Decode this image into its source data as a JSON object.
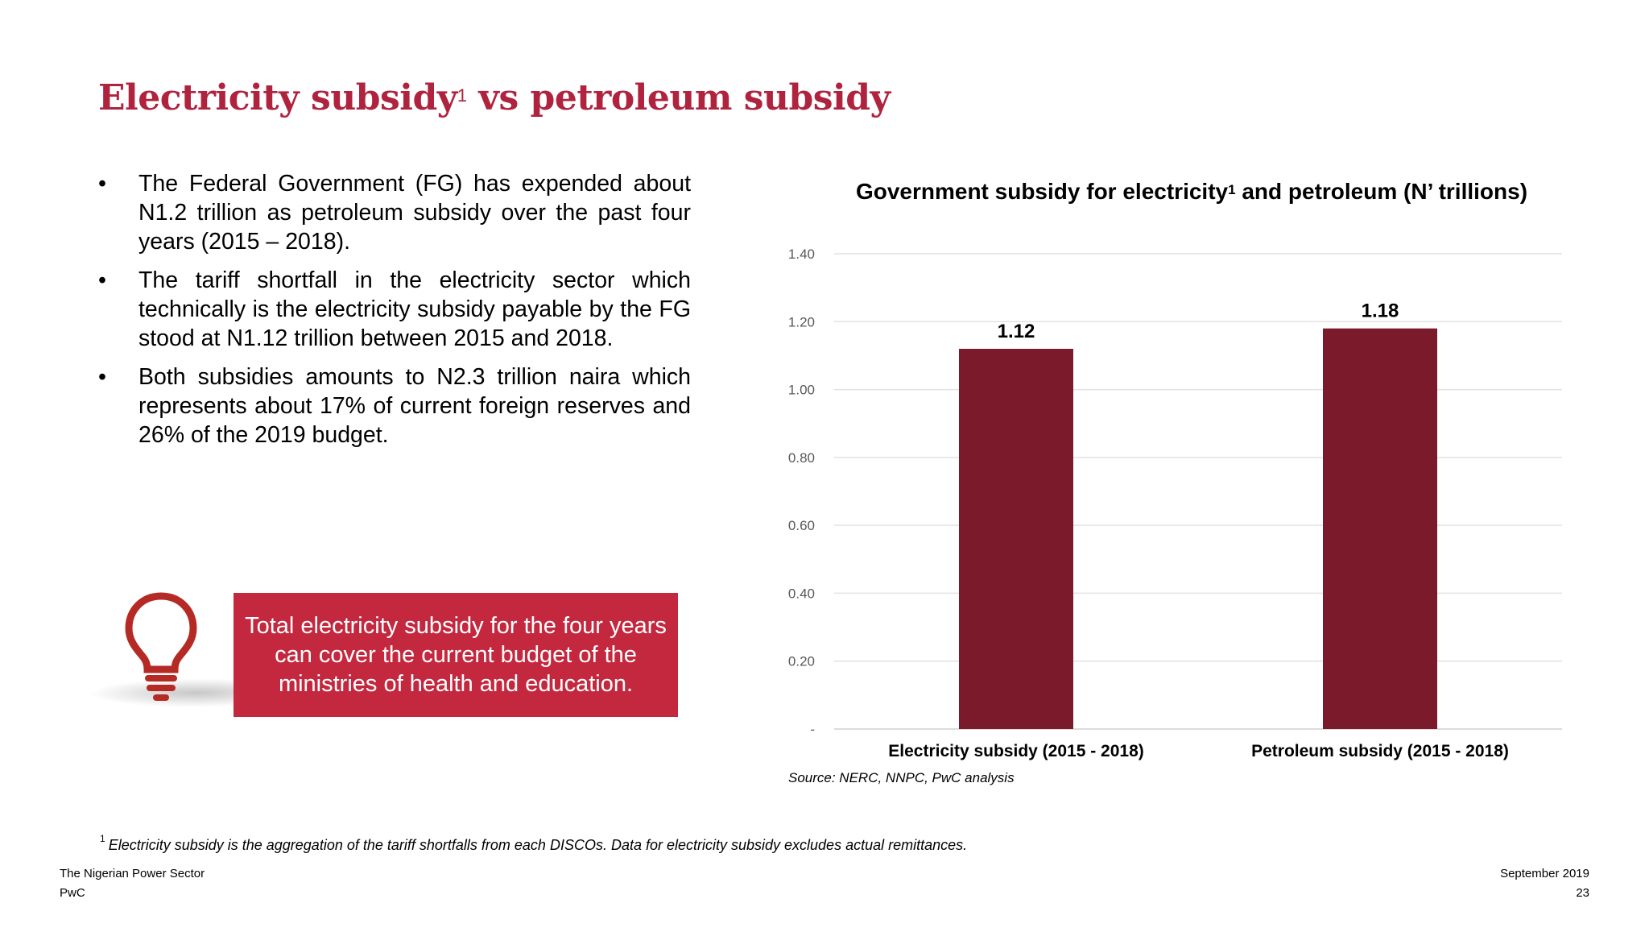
{
  "slide": {
    "title": "Electricity subsidy",
    "title_sup": "1",
    "title_rest": " vs petroleum subsidy"
  },
  "bullets": [
    "The Federal Government (FG) has expended about N1.2 trillion as petroleum subsidy over the past four years (2015 – 2018).",
    "The tariff shortfall in the electricity sector which technically is the electricity subsidy payable by the FG stood at N1.12 trillion between 2015 and 2018.",
    "Both subsidies amounts to N2.3 trillion naira which represents about 17% of current foreign reserves and 26% of the 2019 budget."
  ],
  "bullet_symbol": "•",
  "callout": {
    "text": "Total electricity subsidy for the four years can cover the current budget of the ministries of health and education.",
    "icon": "lightbulb-icon"
  },
  "chart_title": {
    "part1": "Government subsidy for electricity",
    "sup": "1",
    "part2": " and petroleum (N’ trillions)"
  },
  "chart_data": {
    "type": "bar",
    "title": "Government subsidy for electricity1 and petroleum (N’ trillions)",
    "categories": [
      "Electricity subsidy (2015 - 2018)",
      "Petroleum subsidy (2015 - 2018)"
    ],
    "values": [
      1.12,
      1.18
    ],
    "data_labels": [
      "1.12",
      "1.18"
    ],
    "yticks": [
      "-",
      "0.20",
      "0.40",
      "0.60",
      "0.80",
      "1.00",
      "1.20",
      "1.40"
    ],
    "ylim": [
      0,
      1.4
    ],
    "grid": true,
    "bar_color": "#7b1a2a",
    "xlabel": "",
    "ylabel": ""
  },
  "source": "Source: NERC, NNPC, PwC analysis",
  "footnote": {
    "mark": "1",
    "text": "Electricity subsidy is the aggregation of the  tariff shortfalls from each DISCOs. Data for electricity subsidy excludes actual remittances."
  },
  "footer": {
    "left_line1": "The Nigerian Power Sector",
    "left_line2": "PwC",
    "right_line1": "September 2019",
    "right_line2": "23"
  },
  "colors": {
    "title": "#b0233f",
    "callout_bg": "#c4283f",
    "bulb": "#b52a24"
  }
}
